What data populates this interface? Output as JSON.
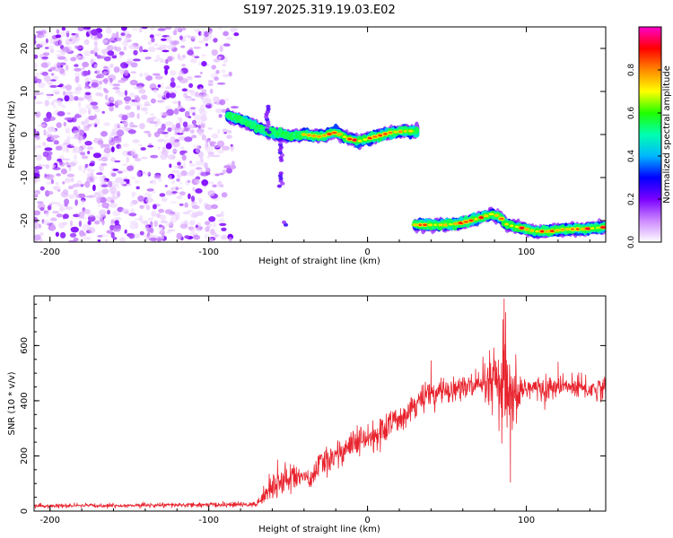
{
  "page_title": "S197.2025.319.19.03.E02",
  "chart_data": [
    {
      "type": "heatmap",
      "title": "S197.2025.319.19.03.E02",
      "xlabel": "Height of straight line (km)",
      "ylabel": "Frequency (Hz)",
      "xlim": [
        -210,
        150
      ],
      "ylim": [
        -25,
        25
      ],
      "xticks": [
        -200,
        -100,
        0,
        100
      ],
      "yticks": [
        -20,
        -10,
        0,
        10,
        20
      ],
      "colorbar": {
        "label": "Normalized spectral amplitude",
        "range": [
          0,
          1
        ],
        "ticks": [
          0.0,
          0.2,
          0.4,
          0.6,
          0.8
        ],
        "colors": [
          "#ffffff",
          "#cc88ff",
          "#7a00ff",
          "#0000ff",
          "#00b7ff",
          "#00ffb0",
          "#20ff00",
          "#ffff00",
          "#ff8800",
          "#ff0000",
          "#ff00cc"
        ]
      },
      "noise_region": {
        "x_range": [
          -210,
          -78
        ],
        "y_range": [
          -25,
          25
        ],
        "amplitude": 0.2
      },
      "ridges": [
        {
          "name": "upper ridge",
          "points": [
            [
              -88,
              4.5
            ],
            [
              -80,
              3.5
            ],
            [
              -72,
              2.0
            ],
            [
              -62,
              0.5
            ],
            [
              -55,
              0.0
            ],
            [
              -48,
              -0.5
            ],
            [
              -40,
              0.0
            ],
            [
              -30,
              -0.5
            ],
            [
              -20,
              0.5
            ],
            [
              -12,
              -1.0
            ],
            [
              -5,
              -1.5
            ],
            [
              5,
              -0.5
            ],
            [
              15,
              0.5
            ],
            [
              25,
              0.8
            ],
            [
              31,
              0.8
            ]
          ],
          "peak_x_range": [
            -40,
            28
          ],
          "peak_amplitude": 0.95
        },
        {
          "name": "lower ridge",
          "points": [
            [
              30,
              -21
            ],
            [
              40,
              -21
            ],
            [
              50,
              -21
            ],
            [
              60,
              -20.5
            ],
            [
              70,
              -19.5
            ],
            [
              78,
              -18.5
            ],
            [
              83,
              -19
            ],
            [
              88,
              -21
            ],
            [
              95,
              -21.5
            ],
            [
              105,
              -22.5
            ],
            [
              115,
              -22.5
            ],
            [
              125,
              -22
            ],
            [
              135,
              -22
            ],
            [
              150,
              -21.5
            ]
          ],
          "peak_x_range": [
            30,
            150
          ],
          "peak_amplitude": 0.92
        }
      ],
      "spurs": [
        {
          "x": -63,
          "y_range": [
            0.5,
            6.5
          ]
        },
        {
          "x": -55,
          "y_range": [
            -6,
            -1
          ]
        },
        {
          "x": -55,
          "y_range": [
            -12,
            -9
          ]
        },
        {
          "x": -52,
          "y_range": [
            -21,
            -20
          ]
        }
      ]
    },
    {
      "type": "line",
      "xlabel": "Height of straight line (km)",
      "ylabel": "SNR (10 * v/v)",
      "xlim": [
        -210,
        150
      ],
      "ylim": [
        0,
        780
      ],
      "xticks": [
        -200,
        -100,
        0,
        100
      ],
      "yticks": [
        0,
        200,
        400,
        600
      ],
      "series": [
        {
          "name": "SNR",
          "color": "#e8232d",
          "trend_x": [
            -210,
            -70,
            -65,
            -55,
            -42,
            -36,
            -30,
            -10,
            0,
            10,
            20,
            30,
            40,
            50,
            60,
            70,
            80,
            85,
            88,
            90,
            95,
            100,
            110,
            120,
            130,
            140,
            150
          ],
          "trend_y": [
            18,
            24,
            60,
            110,
            130,
            110,
            170,
            240,
            260,
            290,
            340,
            390,
            420,
            440,
            450,
            450,
            460,
            440,
            420,
            380,
            430,
            450,
            440,
            450,
            450,
            440,
            450
          ],
          "noise_amplitude_x": [
            -210,
            -70,
            -60,
            -45,
            -40,
            -30,
            0,
            50,
            70,
            82,
            86,
            88,
            92,
            100,
            120,
            150
          ],
          "noise_amplitude_y": [
            8,
            10,
            55,
            60,
            25,
            55,
            60,
            50,
            60,
            160,
            230,
            230,
            120,
            55,
            45,
            45
          ],
          "notable_points": [
            [
              86,
              770
            ],
            [
              90,
              105
            ],
            [
              87,
              720
            ],
            [
              40,
              545
            ],
            [
              120,
              540
            ]
          ]
        }
      ]
    }
  ]
}
